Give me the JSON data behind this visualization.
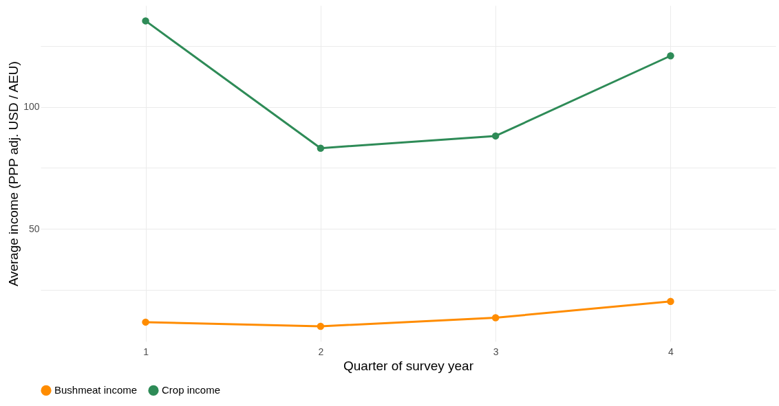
{
  "chart_data": {
    "type": "line",
    "xlabel": "Quarter of survey year",
    "ylabel": "Average income (PPP adj. USD / AEU)",
    "x": [
      1,
      2,
      3,
      4
    ],
    "series": [
      {
        "name": "Bushmeat income",
        "color": "#ff8c00",
        "values": [
          11.9,
          10.2,
          13.7,
          20.4
        ]
      },
      {
        "name": "Crop income",
        "color": "#2e8b57",
        "values": [
          135.2,
          83.1,
          88.1,
          120.9
        ]
      }
    ],
    "xlim": [
      0.4,
      4.6
    ],
    "xticks": [
      1,
      2,
      3,
      4
    ],
    "ylim": [
      4,
      141.5
    ],
    "yticks": [
      {
        "value": 25,
        "label": null
      },
      50,
      {
        "value": 75,
        "label": null
      },
      100,
      {
        "value": 125,
        "label": null
      }
    ],
    "grid": true,
    "legend": "bottom",
    "marker": "circle",
    "line_style": "solid"
  }
}
